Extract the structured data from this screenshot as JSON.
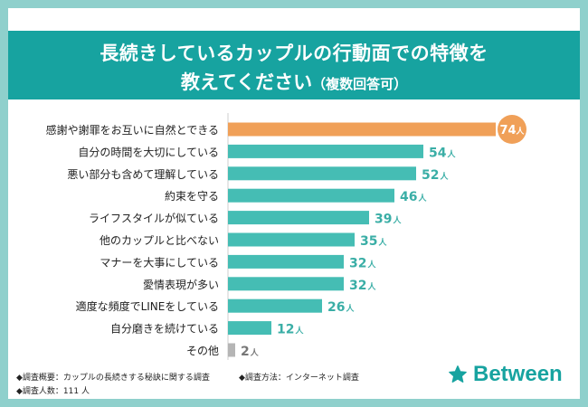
{
  "title": {
    "line1": "長続きしているカップルの行動面での特徴を",
    "line2": "教えてください",
    "line2_note": "（複数回答可）"
  },
  "chart_data": {
    "type": "bar",
    "orientation": "horizontal",
    "unit": "人",
    "categories": [
      "感謝や謝罪をお互いに自然とできる",
      "自分の時間を大切にしている",
      "悪い部分も含めて理解している",
      "約束を守る",
      "ライフスタイルが似ている",
      "他のカップルと比べない",
      "マナーを大事にしている",
      "愛情表現が多い",
      "適度な頻度でLINEをしている",
      "自分磨きを続けている",
      "その他"
    ],
    "values": [
      74,
      54,
      52,
      46,
      39,
      35,
      32,
      32,
      26,
      12,
      2
    ],
    "value_labels": [
      "74",
      "54",
      "52",
      "46",
      "39",
      "35",
      "32",
      "32",
      "26",
      "12",
      "2"
    ],
    "highlight_index": 0,
    "xlim": [
      0,
      74
    ]
  },
  "colors": {
    "bar": "#45bdb4",
    "highlight": "#f0a058",
    "other": "#b5b5b5",
    "label": "#222222",
    "value": "#3aaea6",
    "grid": "#cfcfcf"
  },
  "footer": {
    "survey_summary": "◆調査概要：カップルの長続きする秘訣に関する調査",
    "survey_method": "◆調査方法：インターネット調査",
    "respondents": "◆調査人数：111 人"
  },
  "logo": {
    "text": "Between",
    "icon": "star-icon"
  }
}
